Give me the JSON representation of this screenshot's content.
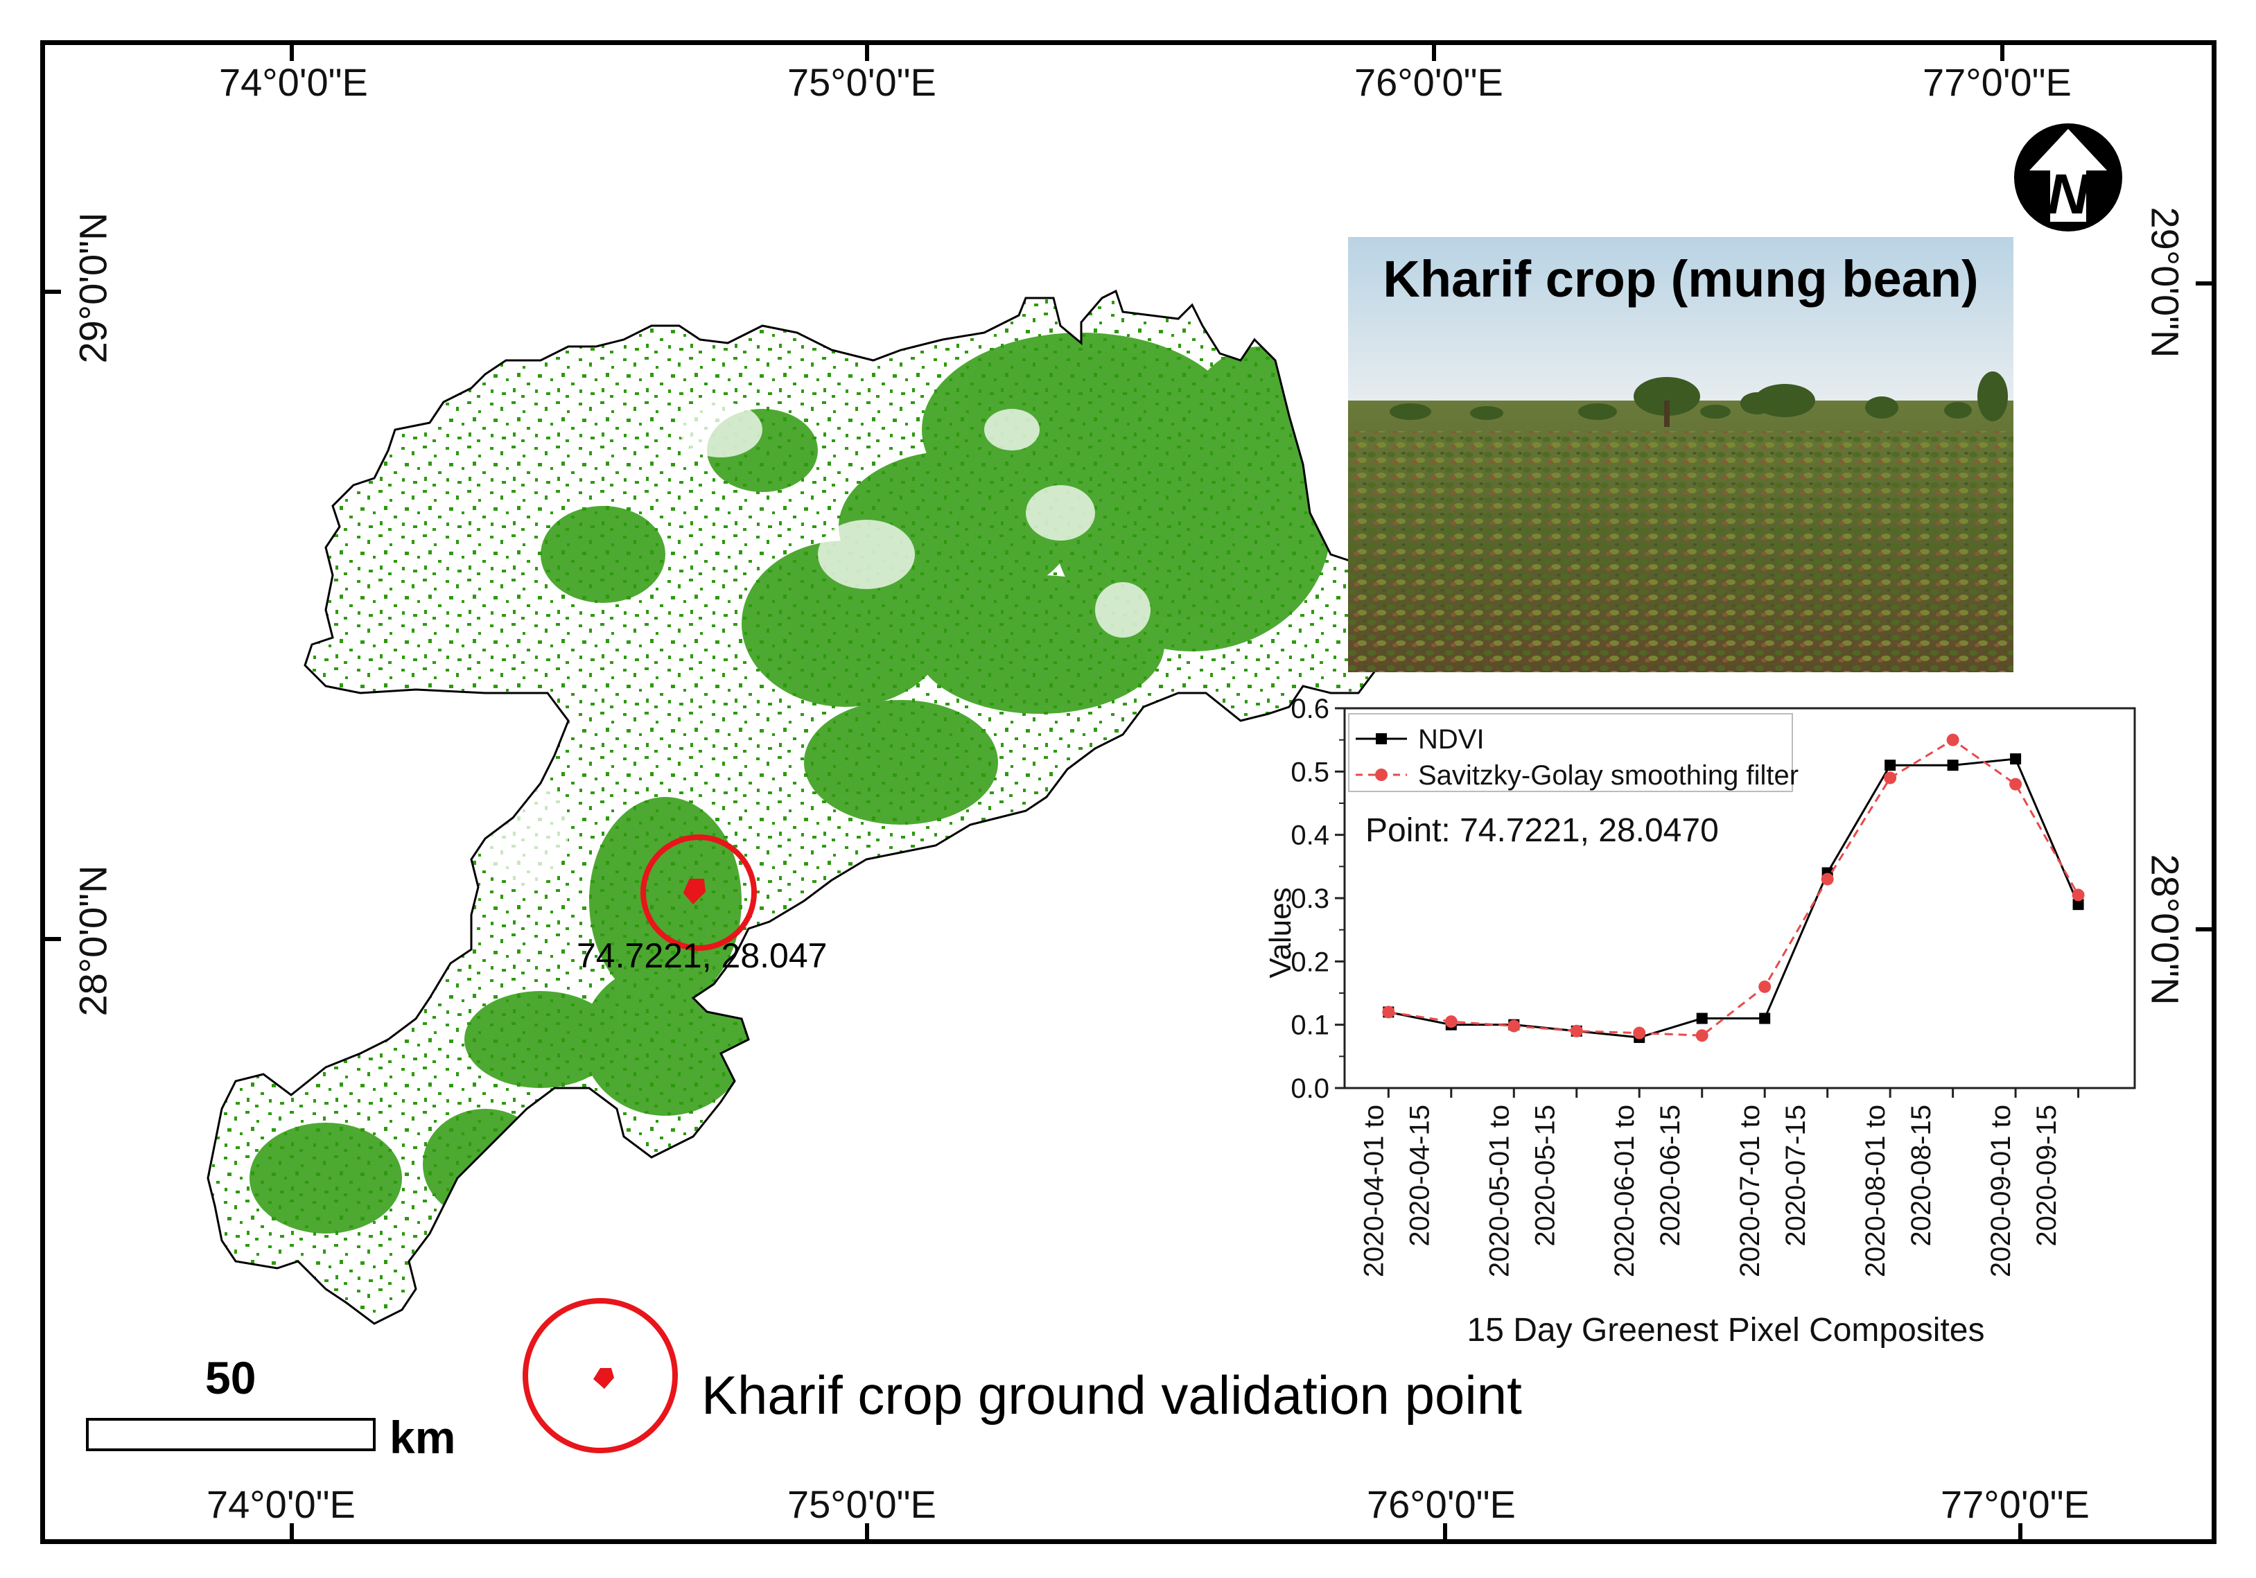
{
  "map": {
    "top_lon_labels": [
      "74°0'0\"E",
      "75°0'0\"E",
      "76°0'0\"E",
      "77°0'0\"E"
    ],
    "bottom_lon_labels": [
      "74°0'0\"E",
      "75°0'0\"E",
      "76°0'0\"E",
      "77°0'0\"E"
    ],
    "left_lat_labels": [
      "29°0'0\"N",
      "28°0'0\"N"
    ],
    "right_lat_labels": [
      "29°0'0\"N",
      "28°0'0\"N"
    ],
    "point_label": "74.7221, 28.047",
    "north_arrow_letter": "N",
    "crop_color": "#2e9a0e",
    "point_color": "#e8151b"
  },
  "photo": {
    "title": "Kharif crop (mung bean)"
  },
  "legend": {
    "point_label": "Kharif crop ground validation point"
  },
  "scale": {
    "value": "50",
    "unit": "km"
  },
  "chart_data": {
    "type": "line",
    "title": "",
    "xlabel": "15 Day Greenest Pixel Composites",
    "ylabel": "Values",
    "ylim": [
      0.0,
      0.6
    ],
    "yticks": [
      "0.0",
      "0.1",
      "0.2",
      "0.3",
      "0.4",
      "0.5",
      "0.6"
    ],
    "annotation": "Point: 74.7221, 28.0470",
    "x_tick_labels": [
      "2020-04-01 to",
      "2020-04-15",
      "2020-05-01 to",
      "2020-05-15",
      "2020-06-01 to",
      "2020-06-15",
      "2020-07-01 to",
      "2020-07-15",
      "2020-08-01 to",
      "2020-08-15",
      "2020-09-01 to",
      "2020-09-15"
    ],
    "series": [
      {
        "name": "NDVI",
        "color": "#000000",
        "values": [
          0.12,
          0.1,
          0.1,
          0.09,
          0.08,
          0.11,
          0.11,
          0.34,
          0.51,
          0.51,
          0.52,
          0.29
        ]
      },
      {
        "name": "Savitzky-Golay smoothing filter",
        "color": "#e84a4a",
        "values": [
          0.12,
          0.105,
          0.098,
          0.09,
          0.087,
          0.083,
          0.16,
          0.33,
          0.49,
          0.55,
          0.48,
          0.305
        ]
      }
    ]
  }
}
